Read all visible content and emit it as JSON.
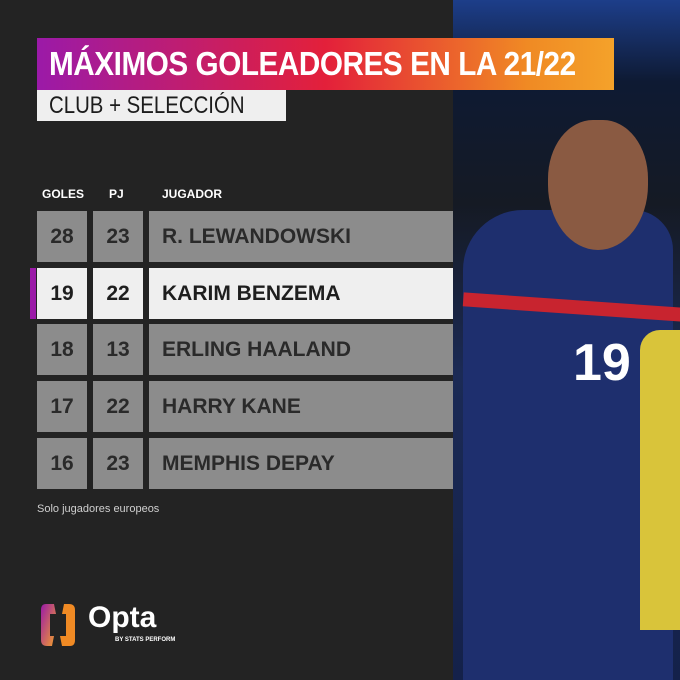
{
  "title": "MÁXIMOS GOLEADORES EN LA 21/22",
  "subtitle": "CLUB + SELECCIÓN",
  "headers": {
    "goals": "GOLES",
    "games": "PJ",
    "player": "JUGADOR"
  },
  "rows": [
    {
      "goals": "28",
      "games": "23",
      "player": "R. LEWANDOWSKI",
      "highlight": false
    },
    {
      "goals": "19",
      "games": "22",
      "player": "KARIM BENZEMA",
      "highlight": true
    },
    {
      "goals": "18",
      "games": "13",
      "player": "ERLING HAALAND",
      "highlight": false
    },
    {
      "goals": "17",
      "games": "22",
      "player": "HARRY KANE",
      "highlight": false
    },
    {
      "goals": "16",
      "games": "23",
      "player": "MEMPHIS DEPAY",
      "highlight": false
    }
  ],
  "note": "Solo jugadores europeos",
  "brand": {
    "name": "Opta",
    "tagline": "BY STATS PERFORM"
  },
  "photo": {
    "shirt_number": "19"
  },
  "colors": {
    "accent": "#9b1aa8",
    "gradient_end": "#f4a22a",
    "row": "#8c8c8c",
    "highlight": "#efefef"
  }
}
